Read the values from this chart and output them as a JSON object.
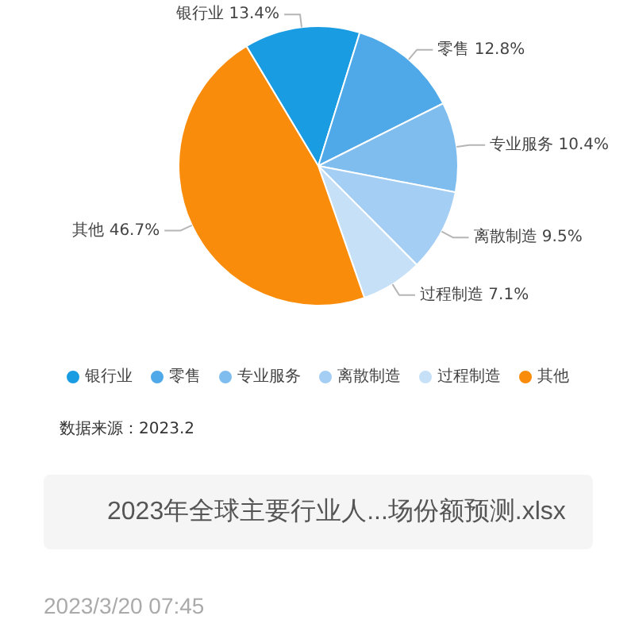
{
  "chart_data": {
    "type": "pie",
    "categories": [
      "银行业",
      "零售",
      "专业服务",
      "离散制造",
      "过程制造",
      "其他"
    ],
    "values": [
      13.4,
      12.8,
      10.4,
      9.5,
      7.1,
      46.7
    ],
    "colors": [
      "#1a9ce2",
      "#4fa9e9",
      "#7fbdef",
      "#a4cef3",
      "#c6e0f7",
      "#fa8c0c"
    ],
    "value_labels": [
      "银行业 13.4%",
      "零售 12.8%",
      "专业服务 10.4%",
      "离散制造 9.5%",
      "过程制造 7.1%",
      "其他 46.7%"
    ],
    "legend": "bottom",
    "annotations": [
      "数据来源：2023.2",
      "2023年全球主要行业人...场份额预测.xlsx",
      "2023/3/20 07:45"
    ]
  }
}
